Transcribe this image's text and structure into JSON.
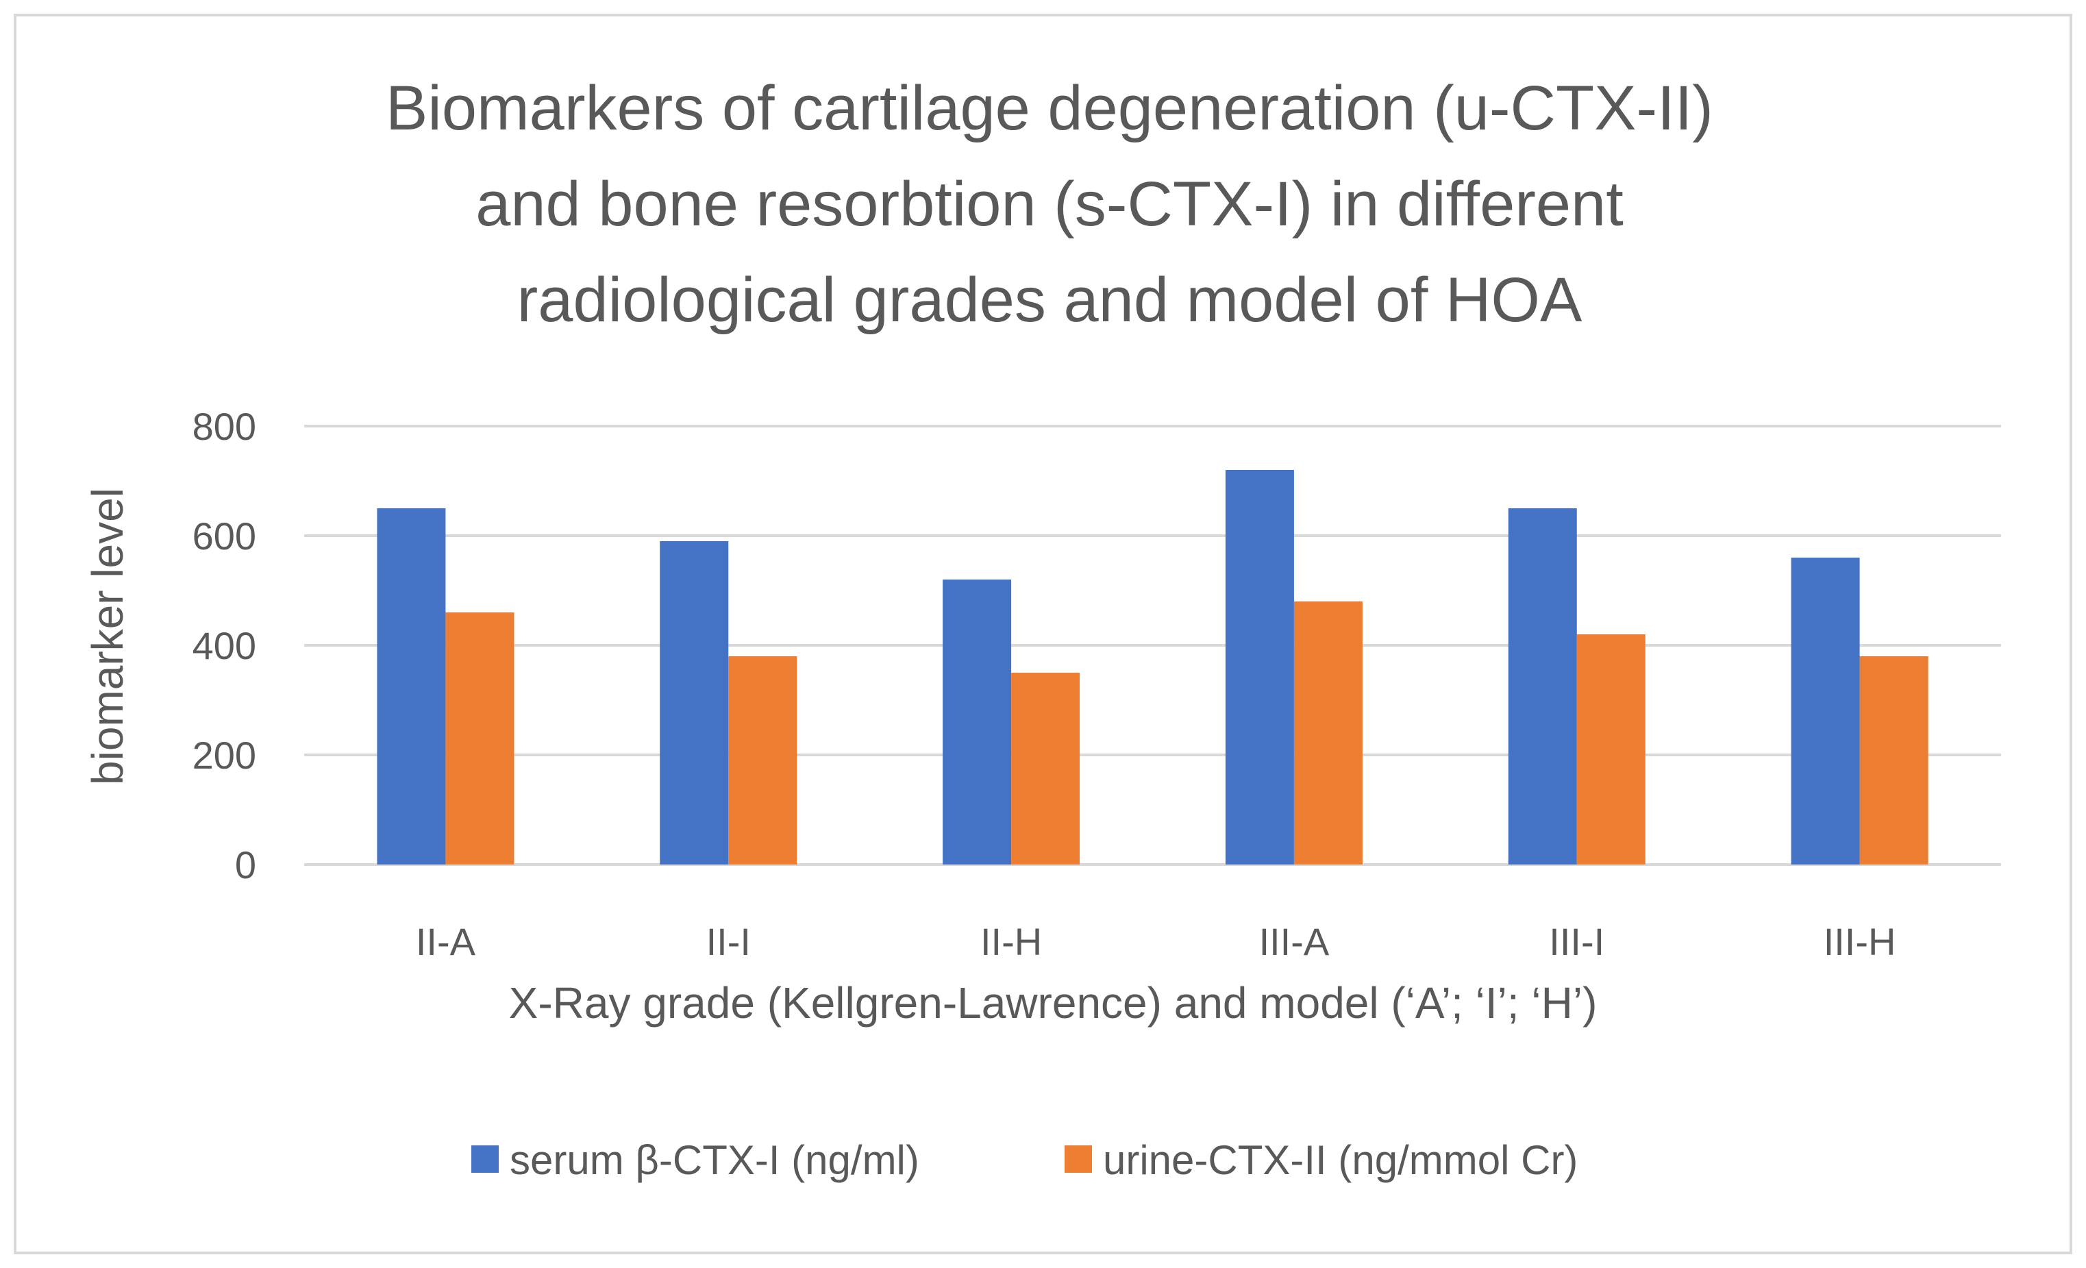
{
  "chart_data": {
    "type": "bar",
    "title_lines": [
      "Biomarkers of cartilage degeneration (u-CTX-II)",
      "and bone resorbtion (s-CTX-I) in different",
      "radiological grades and model of HOA"
    ],
    "xlabel": "X-Ray grade (Kellgren-Lawrence) and model (‘A’; ‘I’; ‘H’)",
    "ylabel": "biomarker level",
    "ylim": [
      0,
      800
    ],
    "yticks": [
      0,
      200,
      400,
      600,
      800
    ],
    "grid": true,
    "legend_position": "bottom",
    "categories": [
      "II-A",
      "II-I",
      "II-H",
      "III-A",
      "III-I",
      "III-H"
    ],
    "series": [
      {
        "name": "serum β-CTX-I (ng/ml)",
        "color": "#4472c4",
        "values": [
          650,
          590,
          520,
          720,
          650,
          560
        ]
      },
      {
        "name": "urine-CTX-II (ng/mmol Cr)",
        "color": "#ed7d31",
        "values": [
          460,
          380,
          350,
          480,
          420,
          380
        ]
      }
    ]
  }
}
